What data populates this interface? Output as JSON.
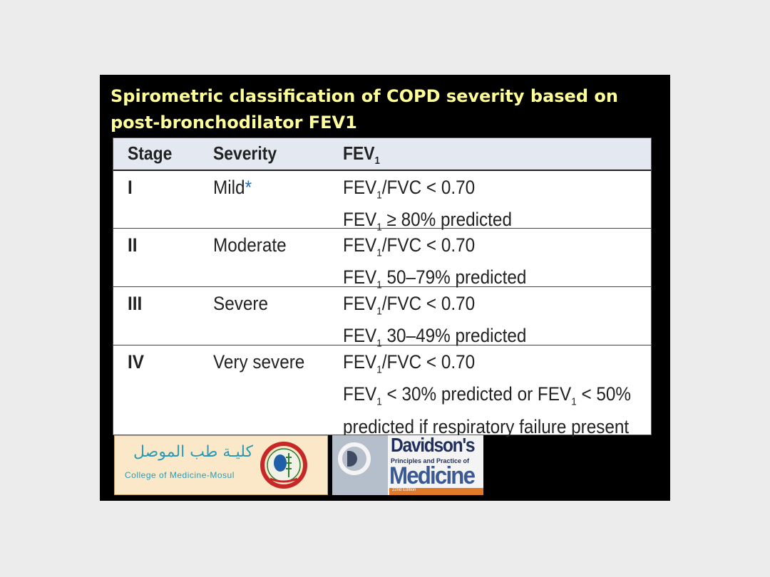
{
  "slide": {
    "title": "Spirometric classification of COPD severity based on post-bronchodilator FEV1"
  },
  "table": {
    "headers": {
      "stage": "Stage",
      "severity": "Severity",
      "fev": "FEV",
      "fev_sub": "1"
    },
    "rows": [
      {
        "stage": "I",
        "severity": "Mild",
        "severity_mark": "*",
        "lines": [
          {
            "pre": "FEV",
            "sub": "1",
            "post": "/FVC < 0.70"
          },
          {
            "pre": "FEV",
            "sub": "1",
            "post": " ≥ 80% predicted"
          }
        ]
      },
      {
        "stage": "II",
        "severity": "Moderate",
        "lines": [
          {
            "pre": "FEV",
            "sub": "1",
            "post": "/FVC < 0.70"
          },
          {
            "pre": "FEV",
            "sub": "1",
            "post": " 50–79% predicted"
          }
        ]
      },
      {
        "stage": "III",
        "severity": "Severe",
        "lines": [
          {
            "pre": "FEV",
            "sub": "1",
            "post": "/FVC < 0.70"
          },
          {
            "pre": "FEV",
            "sub": "1",
            "post": " 30–49% predicted"
          }
        ]
      },
      {
        "stage": "IV",
        "severity": "Very severe",
        "lines": [
          {
            "pre": "FEV",
            "sub": "1",
            "post": "/FVC < 0.70"
          },
          {
            "pre": "FEV",
            "sub": "1",
            "post": " < 30% predicted or FEV",
            "sub2": "1",
            "post2": " < 50%"
          },
          {
            "pre": "predicted if respiratory failure present"
          }
        ]
      }
    ]
  },
  "logos": {
    "college_arabic": "كليـة طب الموصل",
    "college_english": "College of Medicine-Mosul",
    "davidson_name": "Davidson's",
    "davidson_subtitle": "Principles and Practice of",
    "davidson_medicine": "Medicine",
    "davidson_edition": "22nd Edition"
  },
  "colors": {
    "title": "#ffff99",
    "slide_background": "#000000",
    "page_background": "#ececec",
    "header_row": "#e4e8f1",
    "asterisk": "#1f6fc5",
    "college_text": "#2a9ab4",
    "davidson_blue": "#1e2f5e",
    "davidson_orange": "#e07a2a"
  }
}
